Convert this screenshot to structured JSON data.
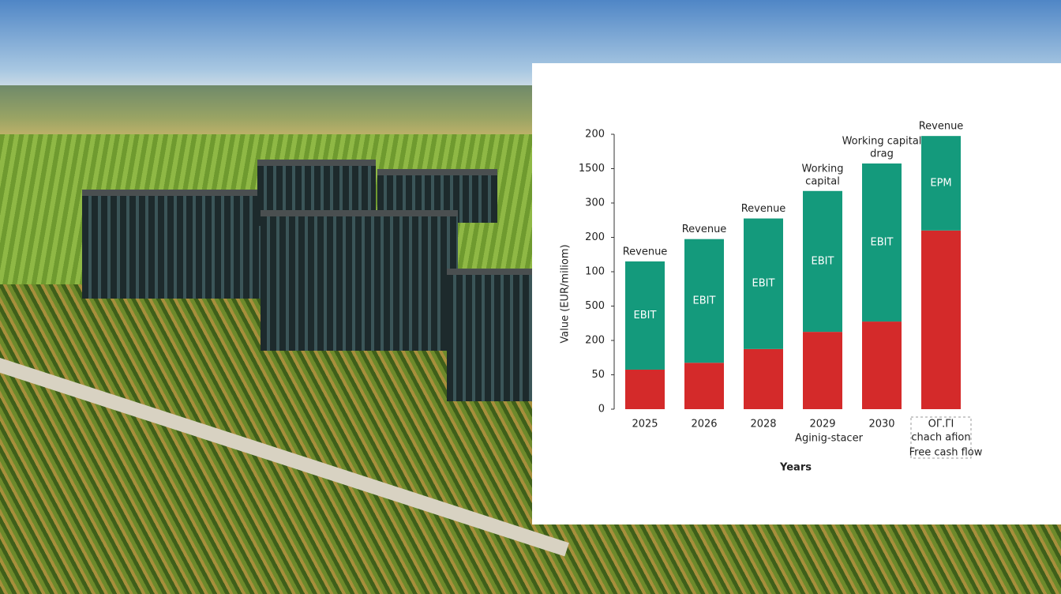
{
  "chart_data": {
    "type": "stacked_bar",
    "x_label": "Years",
    "y_label": "Value (EUR/miliom)",
    "categories": [
      "2025",
      "2026",
      "2028",
      "2029",
      "2030",
      "OΓ.ΓI"
    ],
    "series": [
      {
        "color": "#d42a2a",
        "values": [
          1.15,
          1.35,
          1.75,
          2.25,
          2.55,
          5.2
        ]
      },
      {
        "color": "#149a7c",
        "values": [
          3.15,
          3.6,
          3.8,
          4.1,
          4.6,
          2.75
        ]
      }
    ],
    "bar_labels": [
      "EBIT",
      "EBIT",
      "EBIT",
      "EBIT",
      "EBIT",
      "EPM"
    ],
    "top_labels": [
      [
        "Revenue"
      ],
      [
        "Revenue"
      ],
      [
        "Revenue"
      ],
      [
        "Working",
        "capital"
      ],
      [
        "Working capital",
        "drag"
      ],
      [
        "Revenue"
      ]
    ],
    "notes": [
      "Aginig-stacer",
      "chach afion",
      "Free cash flow"
    ],
    "ylim": [
      0,
      8
    ],
    "yticks": [
      {
        "value": 0,
        "label": "0"
      },
      {
        "value": 1,
        "label": "50"
      },
      {
        "value": 2,
        "label": "200"
      },
      {
        "value": 3,
        "label": "500"
      },
      {
        "value": 4,
        "label": "100"
      },
      {
        "value": 5,
        "label": "200"
      },
      {
        "value": 6,
        "label": "300"
      },
      {
        "value": 7,
        "label": "1500"
      },
      {
        "value": 8,
        "label": "200"
      }
    ],
    "grid": false
  }
}
